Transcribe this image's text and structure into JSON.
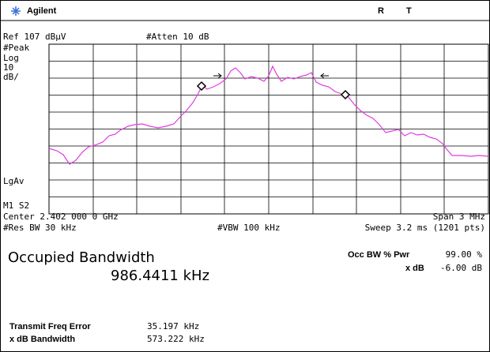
{
  "header": {
    "brand": "Agilent",
    "status_r": "R",
    "status_t": "T"
  },
  "settings": {
    "ref": "Ref 107 dBµV",
    "atten": "#Atten 10 dB",
    "detector": "#Peak",
    "scale_type": "Log",
    "scale_value": "10",
    "scale_unit": "dB/",
    "average": "LgAv",
    "marker_info": "M1 S2"
  },
  "axis": {
    "center": "Center 2.402 000 0 GHz",
    "span": "Span 3 MHz",
    "res_bw": "#Res BW 30 kHz",
    "vbw": "#VBW 100 kHz",
    "sweep": "Sweep 3.2 ms (1201 pts)"
  },
  "measurement": {
    "title": "Occupied Bandwidth",
    "result": "986.4411 kHz",
    "pwr_label": "Occ BW % Pwr",
    "pwr_value": "99.00 %",
    "xdb_label": "x dB",
    "xdb_value": "-6.00 dB",
    "freq_error_label": "Transmit Freq Error",
    "freq_error_value": "35.197 kHz",
    "xdb_bw_label": "x dB Bandwidth",
    "xdb_bw_value": "573.222 kHz"
  }
}
